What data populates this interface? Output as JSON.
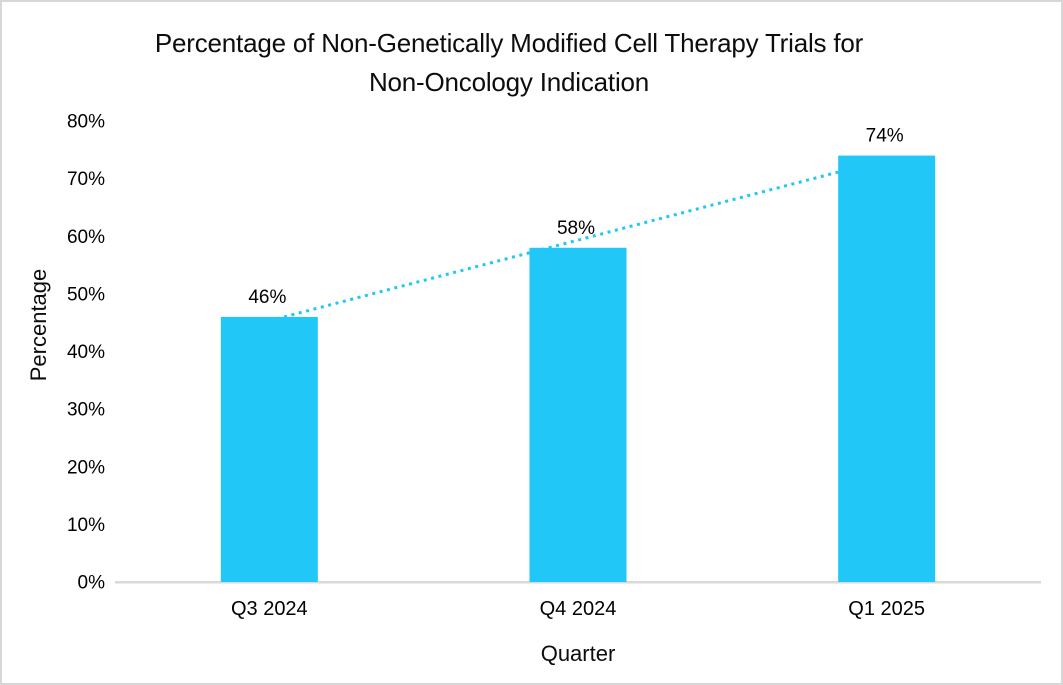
{
  "page": {
    "background": "#FFFFFF",
    "border_color": "#D7D7D7"
  },
  "chart_data": {
    "type": "bar",
    "title": "Percentage of Non-Genetically Modified Cell Therapy Trials for Non-Oncology Indication",
    "title_lines": [
      "Percentage of Non-Genetically Modified Cell Therapy Trials for",
      "Non-Oncology Indication"
    ],
    "categories": [
      "Q3 2024",
      "Q4 2024",
      "Q1 2025"
    ],
    "values": [
      46,
      58,
      74
    ],
    "data_labels": [
      "46%",
      "58%",
      "74%"
    ],
    "xlabel": "Quarter",
    "ylabel": "Percentage",
    "ylim": [
      0,
      80
    ],
    "ytick_step": 10,
    "ytick_labels": [
      "0%",
      "10%",
      "20%",
      "30%",
      "40%",
      "50%",
      "60%",
      "70%",
      "80%"
    ],
    "bar_color": "#20C7F7",
    "axis_color": "#D9D9D9",
    "text_color": "#000000",
    "trendline": {
      "type": "linear",
      "style": "dotted",
      "color": "#20C7F7"
    },
    "grid": false,
    "legend": false
  }
}
